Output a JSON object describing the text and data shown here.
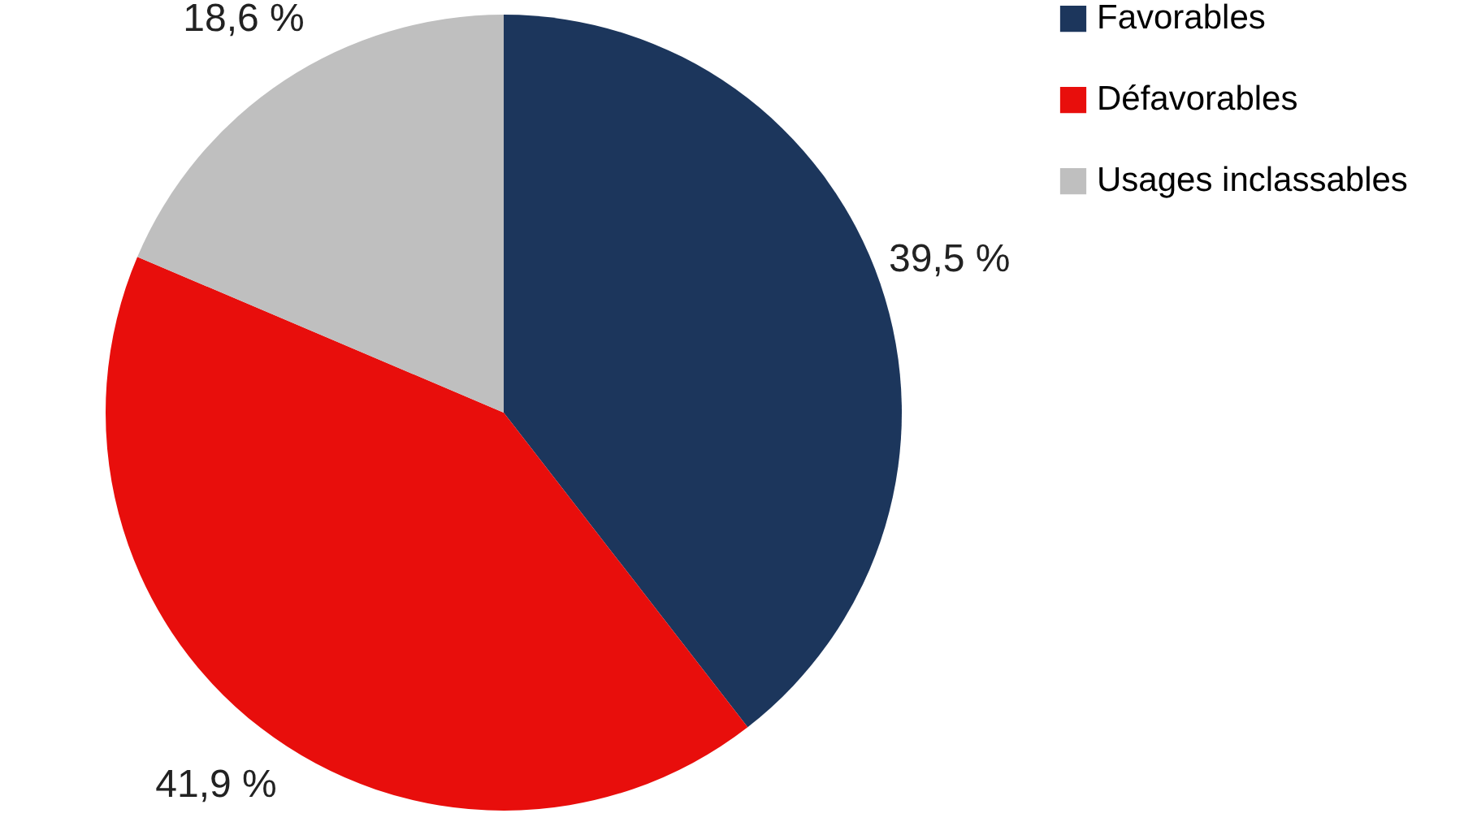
{
  "chart_data": {
    "type": "pie",
    "categories": [
      "Favorables",
      "Défavorables",
      "Usages inclassables"
    ],
    "values": [
      39.5,
      41.9,
      18.6
    ],
    "colors": [
      "#1c365c",
      "#e80e0c",
      "#bfbfbf"
    ],
    "value_labels": [
      "39,5 %",
      "41,9 %",
      "18,6 %"
    ],
    "legend": "right"
  }
}
